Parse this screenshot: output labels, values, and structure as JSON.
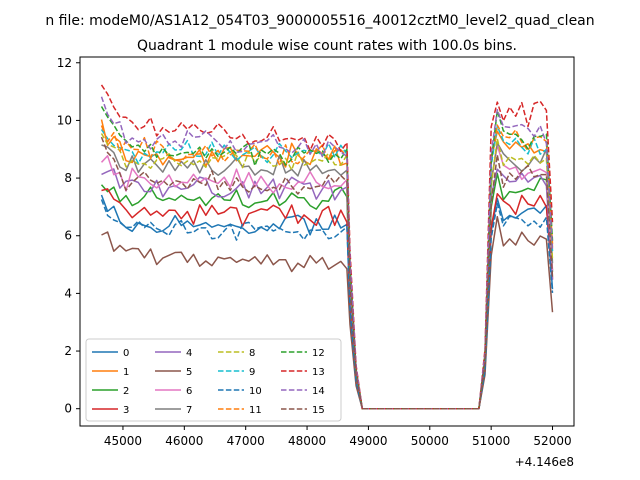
{
  "chart_data": {
    "type": "line",
    "suptitle": "n file: modeM0/AS1A12_054T03_9000005516_40012cztM0_level2_quad_clean",
    "title": "Quadrant 1 module wise count rates with 100.0s bins.",
    "xlabel": "",
    "ylabel": "",
    "x_offset_label": "+4.146e8",
    "xlim": [
      44300,
      52350
    ],
    "ylim": [
      -0.6,
      12.2
    ],
    "x_ticks": [
      45000,
      46000,
      47000,
      48000,
      49000,
      50000,
      51000,
      52000
    ],
    "x_tick_labels": [
      "45000",
      "46000",
      "47000",
      "48000",
      "49000",
      "50000",
      "51000",
      "52000"
    ],
    "y_ticks": [
      0,
      2,
      4,
      6,
      8,
      10,
      12
    ],
    "y_tick_labels": [
      "0",
      "2",
      "4",
      "6",
      "8",
      "10",
      "12"
    ],
    "grid": false,
    "legend": {
      "placement": "lower-left",
      "ncol": 4
    },
    "segments": {
      "active1": {
        "start": 44650,
        "end": 48600,
        "step": 100
      },
      "decay": [
        {
          "x": 48700,
          "f": 0.55
        },
        {
          "x": 48800,
          "f": 0.15
        },
        {
          "x": 48900,
          "f": 0
        }
      ],
      "gap": {
        "start": 48900,
        "end": 50800,
        "value": 0
      },
      "rise": [
        {
          "x": 50800,
          "f": 0
        },
        {
          "x": 50900,
          "f": 0.2
        },
        {
          "x": 51000,
          "f": 0.92
        }
      ],
      "active2": {
        "start": 51000,
        "end": 51900,
        "step": 100
      },
      "drop": {
        "x": 52000,
        "f": 0.6
      }
    },
    "series": [
      {
        "name": "0",
        "style": "solid",
        "color": "#1f77b4",
        "level1": 6.4,
        "level2": 6.8,
        "noise": 0.28,
        "trend": 0.0
      },
      {
        "name": "1",
        "style": "solid",
        "color": "#ff7f0e",
        "level1": 8.8,
        "level2": 9.1,
        "noise": 0.3,
        "trend": 0.0
      },
      {
        "name": "2",
        "style": "solid",
        "color": "#2ca02c",
        "level1": 7.3,
        "level2": 7.6,
        "noise": 0.3,
        "trend": 0.0
      },
      {
        "name": "3",
        "style": "solid",
        "color": "#d62728",
        "level1": 6.9,
        "level2": 7.1,
        "noise": 0.3,
        "trend": -0.2
      },
      {
        "name": "4",
        "style": "solid",
        "color": "#9467bd",
        "level1": 7.6,
        "level2": 7.9,
        "noise": 0.28,
        "trend": 0.0
      },
      {
        "name": "5",
        "style": "solid",
        "color": "#8c564b",
        "level1": 5.3,
        "level2": 5.9,
        "noise": 0.25,
        "trend": -0.3
      },
      {
        "name": "6",
        "style": "solid",
        "color": "#e377c2",
        "level1": 8.0,
        "level2": 8.3,
        "noise": 0.3,
        "trend": -0.2
      },
      {
        "name": "7",
        "style": "solid",
        "color": "#7f7f7f",
        "level1": 8.4,
        "level2": 8.6,
        "noise": 0.3,
        "trend": 0.0
      },
      {
        "name": "8",
        "style": "dashed",
        "color": "#bcbd22",
        "level1": 8.6,
        "level2": 8.7,
        "noise": 0.3,
        "trend": 0.0
      },
      {
        "name": "9",
        "style": "dashed",
        "color": "#17becf",
        "level1": 8.9,
        "level2": 9.1,
        "noise": 0.3,
        "trend": 0.0
      },
      {
        "name": "10",
        "style": "dashed",
        "color": "#1f77b4",
        "level1": 6.3,
        "level2": 6.6,
        "noise": 0.25,
        "trend": -0.2
      },
      {
        "name": "11",
        "style": "dashed",
        "color": "#ff7f0e",
        "level1": 9.0,
        "level2": 9.3,
        "noise": 0.3,
        "trend": -0.2
      },
      {
        "name": "12",
        "style": "dashed",
        "color": "#2ca02c",
        "level1": 9.1,
        "level2": 9.4,
        "noise": 0.3,
        "trend": -0.4
      },
      {
        "name": "13",
        "style": "dashed",
        "color": "#d62728",
        "level1": 10.0,
        "level2": 10.3,
        "noise": 0.35,
        "trend": -0.8
      },
      {
        "name": "14",
        "style": "dashed",
        "color": "#9467bd",
        "level1": 9.4,
        "level2": 9.6,
        "noise": 0.3,
        "trend": -0.4
      },
      {
        "name": "15",
        "style": "dashed",
        "color": "#8c564b",
        "level1": 7.8,
        "level2": 8.0,
        "noise": 0.3,
        "trend": 0.0
      }
    ]
  }
}
